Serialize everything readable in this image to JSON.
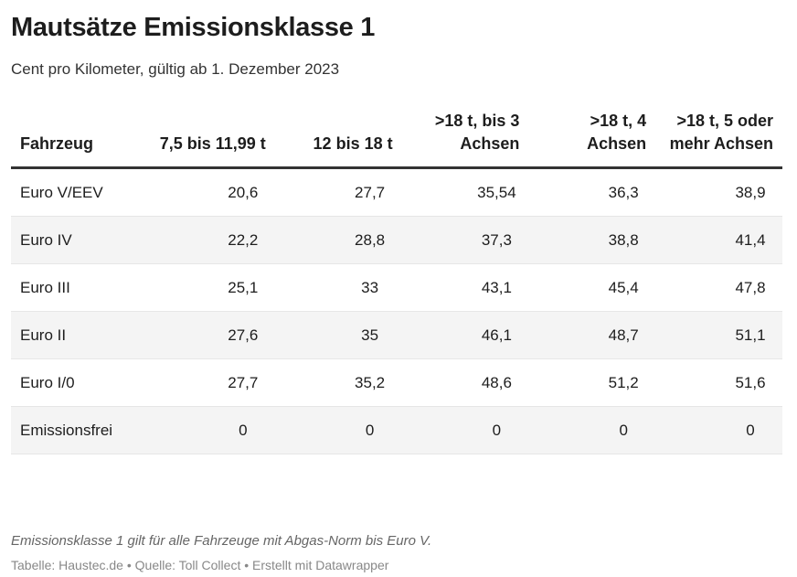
{
  "title": "Mautsätze Emissionsklasse 1",
  "subtitle": "Cent pro Kilometer, gültig ab 1. Dezember 2023",
  "chart_data": {
    "type": "table",
    "columns": [
      "Fahrzeug",
      "7,5 bis 11,99 t",
      "12 bis 18 t",
      ">18 t, bis 3 Achsen",
      ">18 t, 4 Achsen",
      ">18 t, 5 oder mehr Achsen"
    ],
    "rows": [
      [
        "Euro V/EEV",
        "20,6",
        "27,7",
        "35,54",
        "36,3",
        "38,9"
      ],
      [
        "Euro IV",
        "22,2",
        "28,8",
        "37,3",
        "38,8",
        "41,4"
      ],
      [
        "Euro III",
        "25,1",
        "33",
        "43,1",
        "45,4",
        "47,8"
      ],
      [
        "Euro II",
        "27,6",
        "35",
        "46,1",
        "48,7",
        "51,1"
      ],
      [
        "Euro I/0",
        "27,7",
        "35,2",
        "48,6",
        "51,2",
        "51,6"
      ],
      [
        "Emissionsfrei",
        "0",
        "0",
        "0",
        "0",
        "0"
      ]
    ]
  },
  "footnote": "Emissionsklasse 1 gilt für alle Fahrzeuge mit Abgas-Norm bis Euro V.",
  "source": "Tabelle: Haustec.de • Quelle: Toll Collect • Erstellt mit Datawrapper",
  "colors": {
    "header_rule": "#333333",
    "stripe": "#f4f4f4"
  }
}
